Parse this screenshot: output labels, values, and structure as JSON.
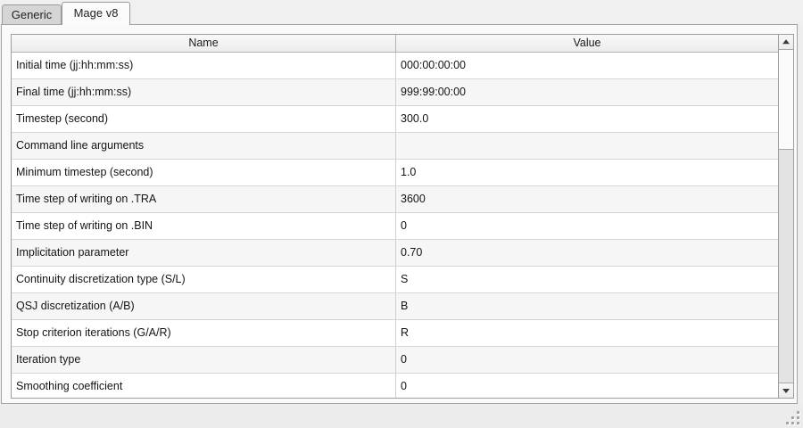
{
  "tabs": {
    "items": [
      {
        "label": "Generic",
        "active": false
      },
      {
        "label": "Mage v8",
        "active": true
      }
    ]
  },
  "table": {
    "columns": {
      "name": "Name",
      "value": "Value"
    },
    "rows": [
      {
        "name": "Initial time (jj:hh:mm:ss)",
        "value": "000:00:00:00"
      },
      {
        "name": "Final time (jj:hh:mm:ss)",
        "value": "999:99:00:00"
      },
      {
        "name": "Timestep (second)",
        "value": "300.0"
      },
      {
        "name": "Command line arguments",
        "value": ""
      },
      {
        "name": "Minimum timestep (second)",
        "value": "1.0"
      },
      {
        "name": "Time step of writing on .TRA",
        "value": "3600"
      },
      {
        "name": "Time step of writing on .BIN",
        "value": "0"
      },
      {
        "name": "Implicitation parameter",
        "value": "0.70"
      },
      {
        "name": "Continuity discretization type (S/L)",
        "value": "S"
      },
      {
        "name": "QSJ discretization (A/B)",
        "value": "B"
      },
      {
        "name": "Stop criterion iterations (G/A/R)",
        "value": "R"
      },
      {
        "name": "Iteration type",
        "value": "0"
      },
      {
        "name": "Smoothing coefficient",
        "value": "0"
      }
    ]
  },
  "scrollbar": {
    "orientation": "vertical",
    "up_icon": "up-arrow",
    "down_icon": "down-arrow",
    "thumb_position": "top"
  },
  "colors": {
    "window_bg": "#eeeeee",
    "panel_bg": "#fafafa",
    "active_tab_bg": "#fbfbfb",
    "inactive_tab_bg": "#d5d5d5",
    "border": "#9e9e9e",
    "row_bg": "#ffffff",
    "row_alt_bg": "#f6f6f6",
    "header_bg": "#ececec",
    "text": "#141414"
  }
}
